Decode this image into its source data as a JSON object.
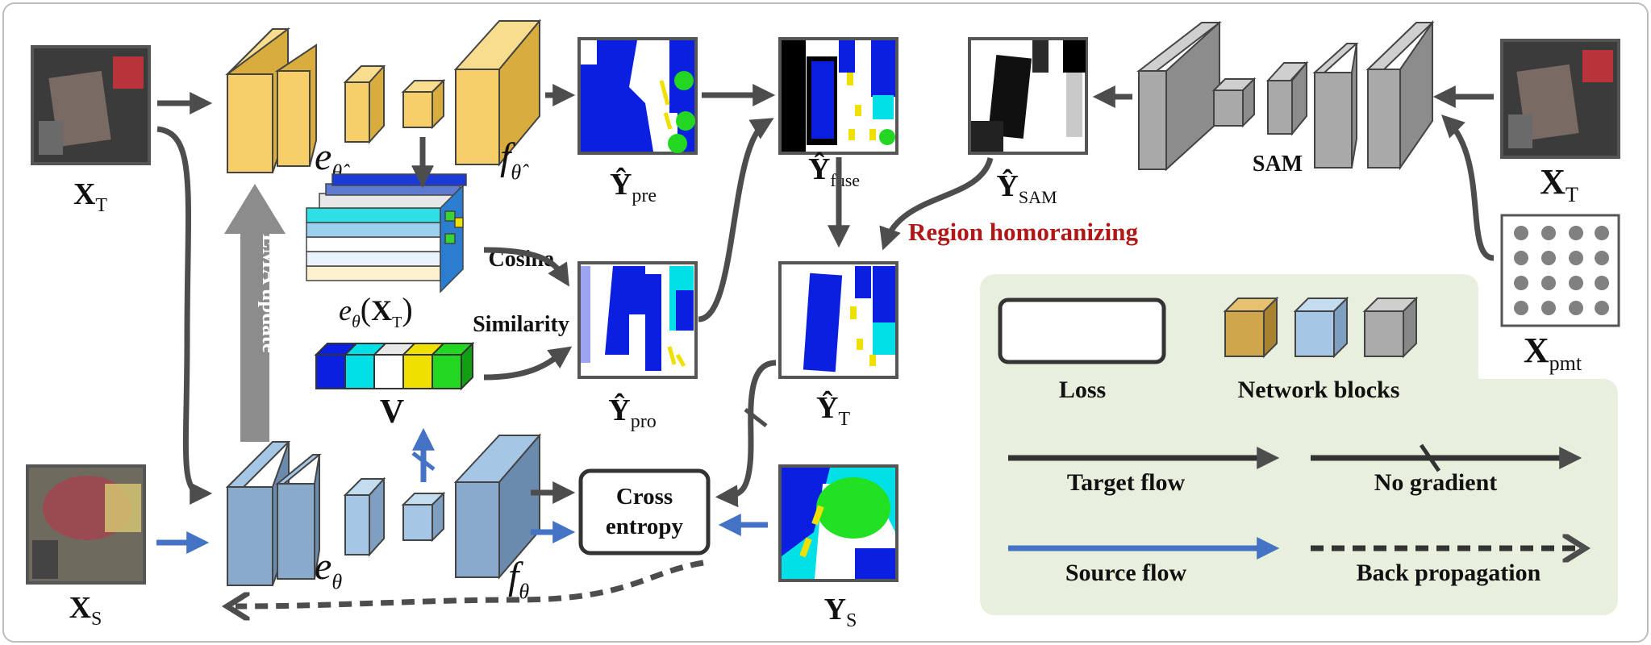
{
  "labels": {
    "x_t": "X",
    "x_t_sub": "T",
    "x_s": "X",
    "x_s_sub": "S",
    "x_t_right": "X",
    "x_t_right_sub": "T",
    "x_pmt": "X",
    "x_pmt_sub": "pmt",
    "e_teacher": "e",
    "e_teacher_sub": "θ̂",
    "f_teacher": "f",
    "f_teacher_sub": "θ̂",
    "e_student": "e",
    "e_student_sub": "θ",
    "f_student": "f",
    "f_student_sub": "θ",
    "feature_label": "e",
    "feature_label_sub": "θ",
    "feature_label_arg": "X",
    "feature_label_arg_sub": "T",
    "v_label": "V",
    "y_pre": "Ŷ",
    "y_pre_sub": "pre",
    "y_pro": "Ŷ",
    "y_pro_sub": "pro",
    "y_fuse": "Ŷ",
    "y_fuse_sub": "fuse",
    "y_sam": "Ŷ",
    "y_sam_sub": "SAM",
    "y_t": "Ŷ",
    "y_t_sub": "T",
    "y_s": "Y",
    "y_s_sub": "S",
    "sam": "SAM",
    "cosine_1": "Cosine",
    "cosine_2": "Similarity",
    "ema_update": "EMA update",
    "region": "Region homoranizing",
    "cross_1": "Cross",
    "cross_2": "entropy"
  },
  "legend": {
    "loss": "Loss",
    "network_blocks": "Network blocks",
    "target_flow": "Target flow",
    "no_gradient": "No gradient",
    "source_flow": "Source flow",
    "back_propagation": "Back propagation"
  },
  "colors": {
    "teacher_block": "#f6cf68",
    "student_block": "#7d9cc0",
    "sam_block": "#a9a9a9",
    "target_flow": "#4d4d4d",
    "source_flow": "#4472c4",
    "legend_bg": "#e8efdc",
    "region_text": "#b01818",
    "seg_blue": "#0a1fe0",
    "seg_cyan": "#00f0f0",
    "seg_yellow": "#f5f000",
    "seg_green": "#22e022"
  }
}
